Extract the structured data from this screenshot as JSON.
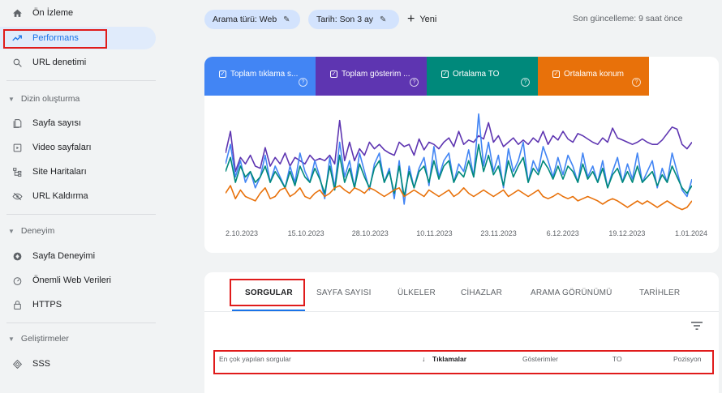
{
  "sidebar": {
    "overview": "Ön İzleme",
    "performance": "Performans",
    "url_inspection": "URL denetimi",
    "indexing_section": "Dizin oluşturma",
    "pages": "Sayfa sayısı",
    "video_pages": "Video sayfaları",
    "sitemaps": "Site Haritaları",
    "removals": "URL Kaldırma",
    "experience_section": "Deneyim",
    "page_experience": "Sayfa Deneyimi",
    "core_web_vitals": "Önemli Web Verileri",
    "https": "HTTPS",
    "enhancements_section": "Geliştirmeler",
    "faq": "SSS"
  },
  "topbar": {
    "search_type": "Arama türü: Web",
    "date": "Tarih: Son 3 ay",
    "new": "Yeni",
    "last_update": "Son güncelleme: 9 saat önce"
  },
  "metrics": [
    {
      "label": "Toplam tıklama s...",
      "color": "#4285f4"
    },
    {
      "label": "Toplam gösterim ...",
      "color": "#5e35b1"
    },
    {
      "label": "Ortalama TO",
      "color": "#00897b"
    },
    {
      "label": "Ortalama konum",
      "color": "#e8710a"
    }
  ],
  "chart_data": {
    "type": "line",
    "x_ticks": [
      "2.10.2023",
      "15.10.2023",
      "28.10.2023",
      "10.11.2023",
      "23.11.2023",
      "6.12.2023",
      "19.12.2023",
      "1.01.2024"
    ],
    "grid": false,
    "legend": "metric tiles above chart",
    "y_axis": "hidden",
    "series": [
      {
        "name": "Toplam gösterim",
        "color": "#5e35b1",
        "values": [
          0.62,
          0.82,
          0.45,
          0.58,
          0.52,
          0.6,
          0.5,
          0.48,
          0.67,
          0.5,
          0.58,
          0.52,
          0.62,
          0.5,
          0.58,
          0.55,
          0.52,
          0.6,
          0.55,
          0.57,
          0.55,
          0.6,
          0.52,
          0.92,
          0.55,
          0.72,
          0.55,
          0.66,
          0.6,
          0.72,
          0.66,
          0.7,
          0.65,
          0.62,
          0.6,
          0.72,
          0.68,
          0.7,
          0.6,
          0.75,
          0.65,
          0.72,
          0.7,
          0.66,
          0.72,
          0.76,
          0.68,
          0.82,
          0.7,
          0.74,
          0.72,
          0.78,
          0.75,
          0.9,
          0.72,
          0.78,
          0.68,
          0.72,
          0.76,
          0.7,
          0.74,
          0.7,
          0.76,
          0.72,
          0.82,
          0.7,
          0.78,
          0.74,
          0.82,
          0.75,
          0.72,
          0.8,
          0.78,
          0.75,
          0.72,
          0.7,
          0.76,
          0.72,
          0.85,
          0.76,
          0.74,
          0.72,
          0.7,
          0.72,
          0.75,
          0.72,
          0.7,
          0.7,
          0.74,
          0.8,
          0.86,
          0.84,
          0.7,
          0.66,
          0.72
        ]
      },
      {
        "name": "Toplam tıklama",
        "color": "#4285f4",
        "values": [
          0.52,
          0.7,
          0.4,
          0.55,
          0.35,
          0.45,
          0.3,
          0.4,
          0.6,
          0.35,
          0.5,
          0.4,
          0.3,
          0.5,
          0.35,
          0.62,
          0.45,
          0.35,
          0.55,
          0.4,
          0.2,
          0.58,
          0.3,
          0.72,
          0.4,
          0.55,
          0.3,
          0.62,
          0.45,
          0.28,
          0.52,
          0.62,
          0.35,
          0.48,
          0.2,
          0.55,
          0.15,
          0.5,
          0.3,
          0.48,
          0.58,
          0.32,
          0.68,
          0.4,
          0.55,
          0.62,
          0.35,
          0.52,
          0.45,
          0.65,
          0.4,
          0.98,
          0.5,
          0.72,
          0.45,
          0.6,
          0.3,
          0.66,
          0.45,
          0.55,
          0.72,
          0.35,
          0.55,
          0.45,
          0.68,
          0.55,
          0.4,
          0.58,
          0.42,
          0.6,
          0.5,
          0.35,
          0.62,
          0.4,
          0.5,
          0.35,
          0.55,
          0.3,
          0.45,
          0.58,
          0.35,
          0.52,
          0.38,
          0.62,
          0.35,
          0.45,
          0.55,
          0.3,
          0.48,
          0.35,
          0.62,
          0.45,
          0.28,
          0.22,
          0.38
        ]
      },
      {
        "name": "Ortalama TO",
        "color": "#00897b",
        "values": [
          0.45,
          0.58,
          0.35,
          0.5,
          0.4,
          0.45,
          0.35,
          0.4,
          0.5,
          0.35,
          0.45,
          0.38,
          0.3,
          0.45,
          0.32,
          0.5,
          0.4,
          0.35,
          0.48,
          0.38,
          0.25,
          0.5,
          0.28,
          0.6,
          0.35,
          0.48,
          0.3,
          0.52,
          0.4,
          0.3,
          0.48,
          0.55,
          0.35,
          0.45,
          0.25,
          0.5,
          0.22,
          0.45,
          0.3,
          0.45,
          0.5,
          0.35,
          0.55,
          0.38,
          0.5,
          0.55,
          0.35,
          0.45,
          0.4,
          0.55,
          0.4,
          0.7,
          0.45,
          0.6,
          0.42,
          0.5,
          0.32,
          0.55,
          0.4,
          0.5,
          0.58,
          0.35,
          0.48,
          0.42,
          0.55,
          0.48,
          0.38,
          0.5,
          0.38,
          0.5,
          0.45,
          0.35,
          0.52,
          0.38,
          0.45,
          0.35,
          0.48,
          0.3,
          0.42,
          0.48,
          0.35,
          0.45,
          0.35,
          0.5,
          0.35,
          0.4,
          0.45,
          0.32,
          0.42,
          0.35,
          0.5,
          0.4,
          0.3,
          0.25,
          0.32
        ]
      },
      {
        "name": "Ortalama konum",
        "color": "#e8710a",
        "values": [
          0.25,
          0.32,
          0.2,
          0.28,
          0.22,
          0.2,
          0.18,
          0.25,
          0.3,
          0.2,
          0.22,
          0.28,
          0.3,
          0.22,
          0.25,
          0.3,
          0.22,
          0.2,
          0.25,
          0.28,
          0.22,
          0.25,
          0.3,
          0.32,
          0.28,
          0.25,
          0.3,
          0.28,
          0.25,
          0.3,
          0.28,
          0.25,
          0.22,
          0.25,
          0.28,
          0.3,
          0.22,
          0.25,
          0.28,
          0.25,
          0.22,
          0.28,
          0.25,
          0.22,
          0.25,
          0.28,
          0.22,
          0.25,
          0.3,
          0.25,
          0.22,
          0.25,
          0.28,
          0.25,
          0.22,
          0.25,
          0.28,
          0.22,
          0.25,
          0.28,
          0.25,
          0.22,
          0.25,
          0.28,
          0.22,
          0.2,
          0.22,
          0.25,
          0.22,
          0.2,
          0.22,
          0.18,
          0.2,
          0.22,
          0.2,
          0.18,
          0.15,
          0.18,
          0.2,
          0.18,
          0.15,
          0.12,
          0.15,
          0.18,
          0.15,
          0.18,
          0.15,
          0.12,
          0.15,
          0.18,
          0.15,
          0.12,
          0.1,
          0.12,
          0.18
        ]
      }
    ]
  },
  "tabs": [
    "SORGULAR",
    "SAYFA SAYISI",
    "ÜLKELER",
    "CİHAZLAR",
    "ARAMA GÖRÜNÜMÜ",
    "TARİHLER"
  ],
  "table": {
    "col_query": "En çok yapılan sorgular",
    "col_clicks": "Tıklamalar",
    "col_impressions": "Gösterimler",
    "col_ctr": "TO",
    "col_position": "Pozisyon"
  }
}
